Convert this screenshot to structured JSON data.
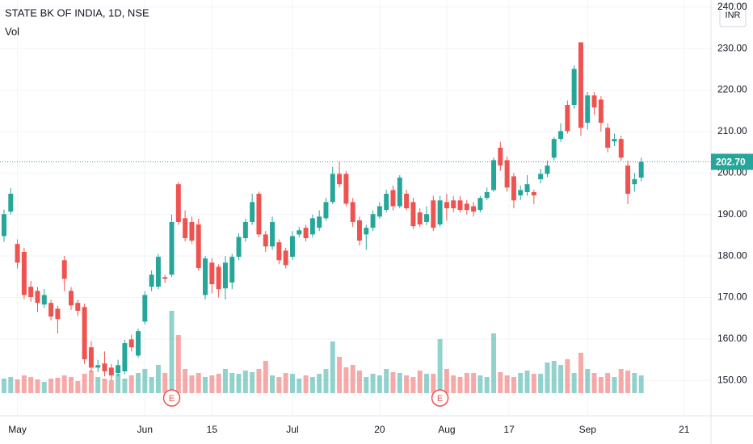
{
  "chart_data": {
    "type": "candlestick",
    "title": "STATE BK OF INDIA, 1D, NSE",
    "subtitle": "Vol",
    "currency": "INR",
    "up_color": "#26a69a",
    "down_color": "#ef5350",
    "grid": true,
    "ylim": [
      141.5,
      241.7
    ],
    "yticks": [
      {
        "value": 150,
        "label": "150.00"
      },
      {
        "value": 160,
        "label": "160.00"
      },
      {
        "value": 170,
        "label": "170.00"
      },
      {
        "value": 180,
        "label": "180.00"
      },
      {
        "value": 190,
        "label": "190.00"
      },
      {
        "value": 200,
        "label": "200.00"
      },
      {
        "value": 210,
        "label": "210.00"
      },
      {
        "value": 220,
        "label": "220.00"
      },
      {
        "value": 230,
        "label": "230.00"
      },
      {
        "value": 240,
        "label": "240.00"
      }
    ],
    "xlim": [
      -0.6,
      105.4
    ],
    "xticks": [
      {
        "value": 2,
        "label": "May"
      },
      {
        "value": 21,
        "label": "Jun"
      },
      {
        "value": 31,
        "label": "15"
      },
      {
        "value": 43,
        "label": "Jul"
      },
      {
        "value": 56,
        "label": "20"
      },
      {
        "value": 66,
        "label": "Aug"
      },
      {
        "value": 75.3,
        "label": "17"
      },
      {
        "value": 87,
        "label": "Sep"
      },
      {
        "value": 101.4,
        "label": "21"
      }
    ],
    "last_price": {
      "value": 202.7,
      "label": "202.70"
    },
    "events": [
      {
        "label": "E",
        "candle": 25
      },
      {
        "label": "E",
        "candle": 65
      }
    ],
    "open": [
      184.8,
      190.7,
      182.9,
      181.0,
      172.6,
      171.6,
      168.3,
      168.7,
      167.3,
      179.0,
      171.6,
      168.7,
      167.7,
      158.0,
      153.1,
      154.1,
      153.1,
      151.8,
      152.2,
      159.9,
      156.0,
      164.2,
      172.6,
      172.6,
      174.9,
      175.5,
      197.3,
      189.1,
      188.2,
      187.6,
      170.6,
      178.4,
      177.4,
      172.2,
      173.6,
      179.8,
      184.3,
      188.2,
      195.0,
      185.2,
      182.3,
      183.3,
      181.3,
      179.8,
      185.2,
      186.8,
      185.2,
      186.8,
      189.1,
      193.0,
      199.8,
      199.8,
      193.0,
      188.6,
      185.2,
      186.8,
      189.5,
      191.1,
      195.9,
      192.0,
      195.0,
      193.0,
      190.5,
      188.2,
      193.4,
      187.6,
      193.0,
      193.4,
      193.4,
      192.6,
      192.0,
      191.1,
      194.0,
      195.9,
      206.1,
      203.1,
      199.2,
      194.6,
      195.4,
      195.4,
      198.5,
      199.8,
      203.7,
      208.2,
      216.4,
      216.4,
      231.5,
      212.1,
      218.7,
      217.7,
      210.9,
      207.6,
      208.2,
      201.8,
      197.3,
      198.9
    ],
    "high": [
      191.2,
      196.4,
      184.0,
      182.0,
      174.0,
      172.5,
      172.0,
      169.5,
      168.0,
      180.0,
      172.5,
      169.5,
      168.5,
      159.5,
      155.0,
      157.0,
      154.0,
      155.0,
      159.8,
      161.0,
      162.5,
      171.5,
      176.5,
      180.5,
      175.5,
      190.0,
      197.8,
      191.0,
      189.5,
      189.0,
      180.0,
      179.5,
      178.0,
      180.0,
      180.5,
      185.5,
      189.0,
      195.0,
      195.5,
      186.0,
      189.5,
      184.0,
      182.0,
      186.0,
      187.0,
      187.5,
      190.0,
      191.0,
      194.0,
      201.5,
      202.7,
      200.5,
      194.0,
      189.5,
      187.5,
      191.0,
      193.0,
      196.0,
      197.0,
      199.5,
      196.0,
      194.0,
      191.5,
      192.0,
      194.5,
      194.5,
      195.0,
      194.5,
      194.5,
      193.5,
      193.0,
      194.5,
      196.5,
      203.7,
      207.5,
      204.0,
      200.0,
      197.0,
      199.5,
      196.0,
      201.0,
      203.0,
      208.7,
      212.0,
      217.5,
      226.0,
      231.5,
      219.5,
      219.5,
      218.5,
      212.0,
      209.5,
      209.0,
      203.0,
      200.0,
      203.7
    ],
    "low": [
      183.4,
      190.0,
      177.0,
      169.6,
      169.0,
      166.5,
      167.5,
      164.5,
      161.3,
      171.5,
      167.0,
      165.5,
      154.0,
      152.0,
      152.0,
      151.0,
      150.0,
      151.0,
      151.5,
      157.0,
      155.5,
      163.5,
      171.5,
      172.0,
      173.5,
      175.0,
      187.5,
      183.5,
      183.0,
      176.5,
      169.5,
      171.0,
      170.0,
      169.5,
      172.0,
      179.0,
      183.5,
      187.5,
      184.5,
      181.0,
      181.5,
      178.0,
      177.0,
      179.0,
      184.5,
      183.5,
      184.5,
      186.0,
      188.5,
      192.5,
      196.5,
      192.0,
      187.0,
      182.5,
      181.5,
      186.0,
      189.0,
      190.5,
      191.0,
      191.5,
      191.0,
      186.5,
      187.0,
      187.5,
      186.0,
      187.0,
      188.5,
      190.5,
      190.5,
      190.0,
      189.5,
      190.5,
      193.5,
      195.5,
      200.5,
      195.5,
      191.5,
      193.5,
      194.5,
      192.5,
      197.5,
      199.0,
      203.0,
      207.5,
      209.5,
      215.5,
      209.0,
      210.5,
      214.0,
      210.0,
      205.0,
      206.5,
      203.0,
      192.5,
      195.5,
      198.0
    ],
    "close": [
      190.1,
      195.0,
      178.4,
      170.6,
      170.1,
      168.7,
      170.6,
      165.4,
      164.8,
      174.5,
      168.1,
      166.8,
      155.1,
      153.1,
      153.7,
      152.2,
      151.2,
      153.7,
      159.0,
      158.0,
      161.9,
      170.6,
      175.5,
      179.8,
      174.5,
      188.2,
      188.2,
      184.3,
      183.7,
      177.1,
      179.4,
      173.2,
      172.0,
      178.4,
      179.8,
      184.6,
      188.2,
      193.0,
      185.2,
      182.3,
      188.2,
      179.0,
      177.8,
      184.8,
      186.2,
      184.3,
      189.1,
      189.5,
      193.0,
      199.8,
      197.3,
      192.6,
      188.2,
      183.7,
      186.8,
      190.1,
      192.0,
      195.0,
      192.0,
      198.9,
      191.5,
      187.2,
      187.6,
      190.1,
      186.8,
      193.4,
      191.5,
      191.5,
      191.1,
      191.1,
      190.7,
      194.0,
      195.4,
      203.1,
      201.8,
      196.5,
      193.4,
      195.9,
      197.3,
      194.6,
      199.8,
      201.8,
      208.2,
      210.1,
      210.1,
      225.1,
      210.9,
      218.7,
      215.8,
      212.1,
      206.1,
      208.2,
      203.7,
      195.0,
      198.5,
      202.7
    ],
    "volume": [
      18,
      20,
      17,
      22,
      20,
      17,
      14,
      18,
      19,
      22,
      20,
      15,
      24,
      28,
      20,
      18,
      16,
      24,
      18,
      22,
      25,
      30,
      20,
      35,
      25,
      102,
      72,
      30,
      22,
      25,
      20,
      22,
      24,
      30,
      25,
      24,
      28,
      26,
      30,
      40,
      22,
      20,
      25,
      24,
      18,
      22,
      20,
      24,
      30,
      64,
      45,
      32,
      35,
      28,
      20,
      24,
      22,
      30,
      26,
      25,
      22,
      20,
      28,
      24,
      24,
      67,
      30,
      22,
      20,
      25,
      25,
      22,
      20,
      74,
      26,
      22,
      20,
      25,
      28,
      24,
      24,
      38,
      40,
      35,
      42,
      25,
      50,
      30,
      25,
      20,
      25,
      20,
      30,
      28,
      25,
      22
    ]
  }
}
